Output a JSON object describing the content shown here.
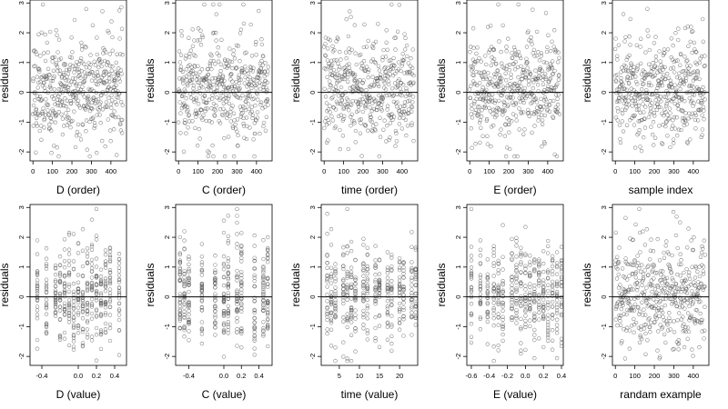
{
  "chart_data": [
    {
      "type": "scatter",
      "xlabel": "D (order)",
      "ylabel": "residuals",
      "xlim": [
        -15,
        480
      ],
      "ylim": [
        -2.3,
        3.1
      ],
      "xticks": [
        0,
        100,
        200,
        300,
        400
      ],
      "yticks": [
        -2,
        -1,
        0,
        1,
        2,
        3
      ],
      "reference_line_y": 0,
      "n_points": 460,
      "x_range": [
        0,
        460
      ],
      "seed": 11
    },
    {
      "type": "scatter",
      "xlabel": "C (order)",
      "ylabel": "residuals",
      "xlim": [
        -15,
        480
      ],
      "ylim": [
        -2.3,
        3.1
      ],
      "xticks": [
        0,
        100,
        200,
        300,
        400
      ],
      "yticks": [
        -2,
        -1,
        0,
        1,
        2,
        3
      ],
      "reference_line_y": 0,
      "n_points": 460,
      "x_range": [
        0,
        460
      ],
      "seed": 23
    },
    {
      "type": "scatter",
      "xlabel": "time (order)",
      "ylabel": "residuals",
      "xlim": [
        -15,
        480
      ],
      "ylim": [
        -2.3,
        3.1
      ],
      "xticks": [
        0,
        100,
        200,
        300,
        400
      ],
      "yticks": [
        -2,
        -1,
        0,
        1,
        2,
        3
      ],
      "reference_line_y": 0,
      "n_points": 460,
      "x_range": [
        0,
        460
      ],
      "seed": 37
    },
    {
      "type": "scatter",
      "xlabel": "E (order)",
      "ylabel": "residuals",
      "xlim": [
        -15,
        480
      ],
      "ylim": [
        -2.3,
        3.1
      ],
      "xticks": [
        0,
        100,
        200,
        300,
        400
      ],
      "yticks": [
        -2,
        -1,
        0,
        1,
        2,
        3
      ],
      "reference_line_y": 0,
      "n_points": 460,
      "x_range": [
        0,
        460
      ],
      "seed": 41
    },
    {
      "type": "scatter",
      "xlabel": "sample index",
      "ylabel": "residuals",
      "xlim": [
        -15,
        480
      ],
      "ylim": [
        -2.3,
        3.1
      ],
      "xticks": [
        0,
        100,
        200,
        300,
        400
      ],
      "yticks": [
        -2,
        -1,
        0,
        1,
        2,
        3
      ],
      "reference_line_y": 0,
      "n_points": 460,
      "x_range": [
        0,
        460
      ],
      "seed": 53
    },
    {
      "type": "scatter",
      "xlabel": "D (value)",
      "ylabel": "residuals",
      "xlim": [
        -0.53,
        0.53
      ],
      "ylim": [
        -2.3,
        3.1
      ],
      "xticks": [
        -0.4,
        0.0,
        0.2,
        0.4
      ],
      "xtick_labels": [
        "-0.4",
        "0.0",
        "0.2",
        "0.4"
      ],
      "yticks": [
        -2,
        -1,
        0,
        1,
        2,
        3
      ],
      "reference_line_y": 0,
      "x_levels": [
        -0.45,
        -0.35,
        -0.25,
        -0.2,
        -0.15,
        -0.1,
        -0.05,
        0.0,
        0.05,
        0.1,
        0.15,
        0.2,
        0.25,
        0.3,
        0.35,
        0.45
      ],
      "points_per_level": 26,
      "seed": 61
    },
    {
      "type": "scatter",
      "xlabel": "C (value)",
      "ylabel": "residuals",
      "xlim": [
        -0.55,
        0.55
      ],
      "ylim": [
        -2.3,
        3.1
      ],
      "xticks": [
        -0.4,
        0.0,
        0.2,
        0.4
      ],
      "xtick_labels": [
        "-0.4",
        "0.0",
        "0.2",
        "0.4"
      ],
      "yticks": [
        -2,
        -1,
        0,
        1,
        2,
        3
      ],
      "reference_line_y": 0,
      "x_levels": [
        -0.5,
        -0.45,
        -0.4,
        -0.25,
        -0.1,
        0.0,
        0.05,
        0.15,
        0.2,
        0.35,
        0.45,
        0.5
      ],
      "points_per_level": 34,
      "seed": 73
    },
    {
      "type": "scatter",
      "xlabel": "time (value)",
      "ylabel": "residuals",
      "xlim": [
        0.5,
        24.5
      ],
      "ylim": [
        -2.3,
        3.1
      ],
      "xticks": [
        5,
        10,
        15,
        20
      ],
      "xtick_labels": [
        "5",
        "10",
        "15",
        "20"
      ],
      "yticks": [
        -2,
        -1,
        0,
        1,
        2,
        3
      ],
      "reference_line_y": 0,
      "x_levels": [
        2,
        3,
        4,
        6,
        7,
        8,
        9,
        11,
        12,
        14,
        15,
        17,
        18,
        20,
        21,
        23,
        24
      ],
      "points_per_level": 24,
      "seed": 83
    },
    {
      "type": "scatter",
      "xlabel": "E (value)",
      "ylabel": "residuals",
      "xlim": [
        -0.65,
        0.42
      ],
      "ylim": [
        -2.3,
        3.1
      ],
      "xticks": [
        -0.6,
        -0.4,
        -0.2,
        0.0,
        0.2,
        0.4
      ],
      "xtick_labels": [
        "-0.6",
        "-0.4",
        "-0.2",
        "0.0",
        "0.2",
        "0.4"
      ],
      "yticks": [
        -2,
        -1,
        0,
        1,
        2,
        3
      ],
      "reference_line_y": 0,
      "x_levels": [
        -0.6,
        -0.5,
        -0.42,
        -0.35,
        -0.3,
        -0.25,
        -0.15,
        -0.1,
        -0.05,
        0.0,
        0.05,
        0.1,
        0.15,
        0.2,
        0.25,
        0.3,
        0.35,
        0.4
      ],
      "points_per_level": 24,
      "seed": 97
    },
    {
      "type": "scatter",
      "xlabel": "randam example",
      "ylabel": "residuals",
      "xlim": [
        -15,
        480
      ],
      "ylim": [
        -2.3,
        3.1
      ],
      "xticks": [
        0,
        100,
        200,
        300,
        400
      ],
      "yticks": [
        -2,
        -1,
        0,
        1,
        2,
        3
      ],
      "reference_line_y": 0,
      "n_points": 460,
      "x_range": [
        0,
        460
      ],
      "seed": 101
    }
  ],
  "style": {
    "point_color": "#555555",
    "axis_color": "#000000",
    "background": "#ffffff"
  }
}
